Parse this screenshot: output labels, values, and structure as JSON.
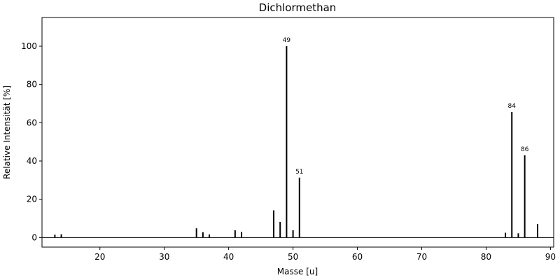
{
  "chart_data": {
    "type": "bar",
    "title": "Dichlormethan",
    "xlabel": "Masse [u]",
    "ylabel": "Relative Intensität [%]",
    "xlim": [
      11,
      90.5
    ],
    "ylim": [
      -5,
      115
    ],
    "xticks": [
      20,
      30,
      40,
      50,
      60,
      70,
      80,
      90
    ],
    "yticks": [
      0,
      20,
      40,
      60,
      80,
      100
    ],
    "grid": false,
    "baseline": 0,
    "peaks": [
      {
        "x": 13,
        "y": 1.5
      },
      {
        "x": 14,
        "y": 1.7
      },
      {
        "x": 35,
        "y": 4.8
      },
      {
        "x": 36,
        "y": 2.8
      },
      {
        "x": 37,
        "y": 1.6
      },
      {
        "x": 41,
        "y": 3.8
      },
      {
        "x": 42,
        "y": 3.0
      },
      {
        "x": 47,
        "y": 14.2
      },
      {
        "x": 48,
        "y": 8.2
      },
      {
        "x": 49,
        "y": 100.0,
        "label": "49"
      },
      {
        "x": 50,
        "y": 3.8
      },
      {
        "x": 51,
        "y": 31.3,
        "label": "51"
      },
      {
        "x": 83,
        "y": 2.5
      },
      {
        "x": 84,
        "y": 65.6,
        "label": "84"
      },
      {
        "x": 85,
        "y": 2.2
      },
      {
        "x": 86,
        "y": 43.0,
        "label": "86"
      },
      {
        "x": 88,
        "y": 7.1
      }
    ]
  }
}
